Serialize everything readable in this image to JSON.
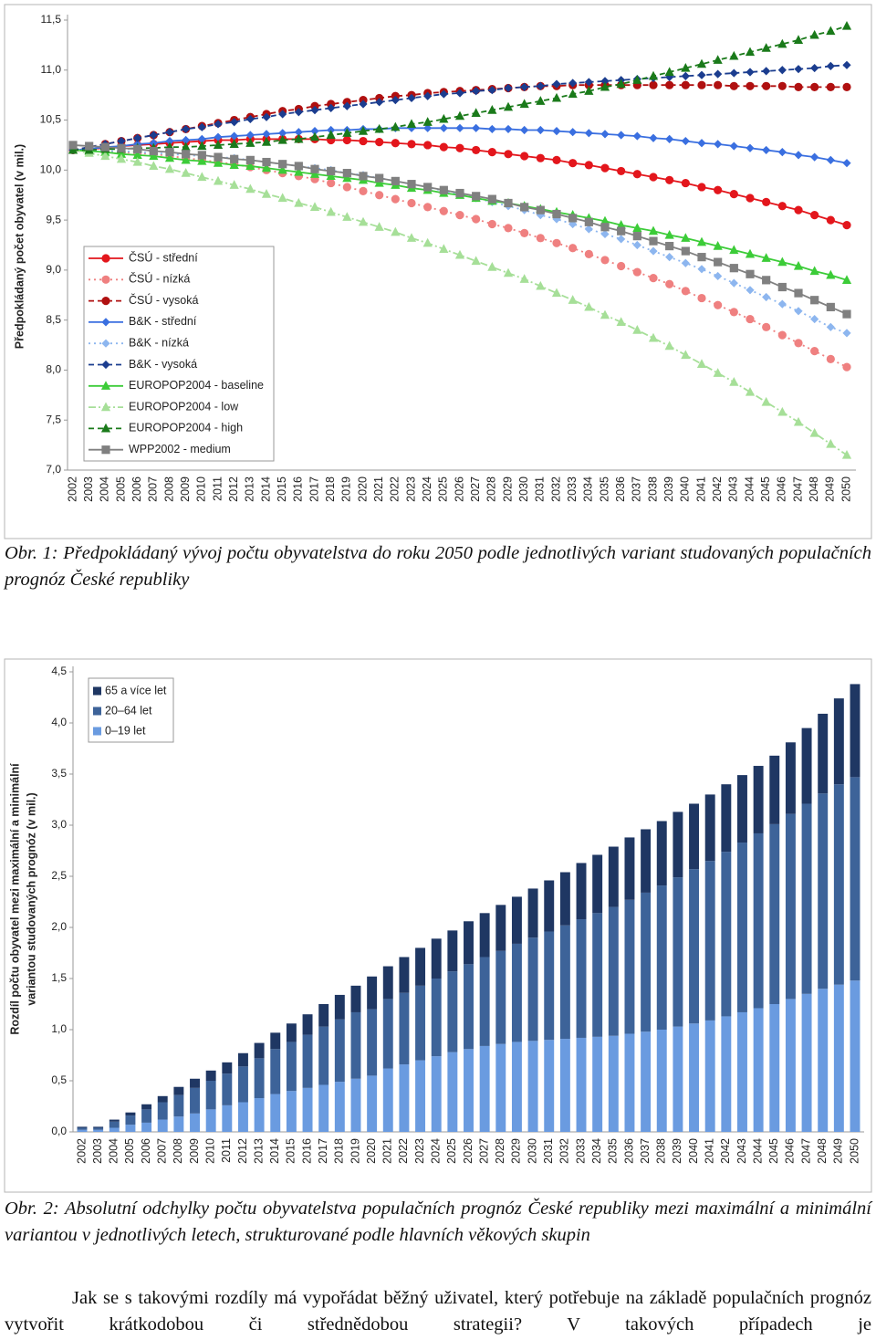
{
  "chart_data": [
    {
      "type": "line",
      "ylabel": "Předpokládaný počet obyvatel (v mil.)",
      "categories": [
        "2002",
        "2003",
        "2004",
        "2005",
        "2006",
        "2007",
        "2008",
        "2009",
        "2010",
        "2011",
        "2012",
        "2013",
        "2014",
        "2015",
        "2016",
        "2017",
        "2018",
        "2019",
        "2020",
        "2021",
        "2022",
        "2023",
        "2024",
        "2025",
        "2026",
        "2027",
        "2028",
        "2029",
        "2030",
        "2031",
        "2032",
        "2033",
        "2034",
        "2035",
        "2036",
        "2037",
        "2038",
        "2039",
        "2040",
        "2041",
        "2042",
        "2043",
        "2044",
        "2045",
        "2046",
        "2047",
        "2048",
        "2049",
        "2050"
      ],
      "ylim": [
        7.0,
        11.5
      ],
      "yticks": [
        {
          "value": 7.0,
          "label": "7,0"
        },
        {
          "value": 7.5,
          "label": "7,5"
        },
        {
          "value": 8.0,
          "label": "8,0"
        },
        {
          "value": 8.5,
          "label": "8,5"
        },
        {
          "value": 9.0,
          "label": "9,0"
        },
        {
          "value": 9.5,
          "label": "9,5"
        },
        {
          "value": 10.0,
          "label": "10,0"
        },
        {
          "value": 10.5,
          "label": "10,5"
        },
        {
          "value": 11.0,
          "label": "11,0"
        },
        {
          "value": 11.5,
          "label": "11,5"
        }
      ],
      "grid": false,
      "legend": "lower-left",
      "series": [
        {
          "name": "ČSÚ - střední",
          "color": "#e3161c",
          "marker": "circle",
          "linestyle": "solid",
          "values": [
            10.2,
            10.21,
            10.22,
            10.24,
            10.25,
            10.26,
            10.27,
            10.28,
            10.29,
            10.3,
            10.3,
            10.31,
            10.31,
            10.31,
            10.31,
            10.31,
            10.3,
            10.3,
            10.29,
            10.28,
            10.27,
            10.26,
            10.25,
            10.23,
            10.22,
            10.2,
            10.18,
            10.16,
            10.14,
            10.12,
            10.1,
            10.07,
            10.05,
            10.02,
            9.99,
            9.96,
            9.93,
            9.9,
            9.87,
            9.83,
            9.8,
            9.76,
            9.72,
            9.68,
            9.64,
            9.6,
            9.55,
            9.5,
            9.45
          ]
        },
        {
          "name": "ČSÚ - nízká",
          "color": "#ef8080",
          "marker": "circle",
          "linestyle": "dotted",
          "values": [
            10.2,
            10.2,
            10.19,
            10.18,
            10.17,
            10.16,
            10.14,
            10.12,
            10.1,
            10.08,
            10.06,
            10.03,
            10.0,
            9.97,
            9.94,
            9.91,
            9.87,
            9.83,
            9.79,
            9.75,
            9.71,
            9.67,
            9.63,
            9.59,
            9.55,
            9.51,
            9.46,
            9.42,
            9.37,
            9.32,
            9.27,
            9.22,
            9.16,
            9.1,
            9.04,
            8.98,
            8.92,
            8.86,
            8.79,
            8.72,
            8.65,
            8.58,
            8.51,
            8.43,
            8.35,
            8.27,
            8.19,
            8.11,
            8.03
          ]
        },
        {
          "name": "ČSÚ - vysoká",
          "color": "#b01010",
          "marker": "circle",
          "linestyle": "dashed",
          "values": [
            10.2,
            10.23,
            10.26,
            10.29,
            10.32,
            10.35,
            10.38,
            10.41,
            10.44,
            10.47,
            10.5,
            10.53,
            10.56,
            10.59,
            10.61,
            10.64,
            10.66,
            10.68,
            10.7,
            10.72,
            10.74,
            10.75,
            10.77,
            10.78,
            10.79,
            10.8,
            10.81,
            10.82,
            10.83,
            10.84,
            10.84,
            10.85,
            10.85,
            10.85,
            10.85,
            10.85,
            10.85,
            10.85,
            10.85,
            10.85,
            10.85,
            10.84,
            10.84,
            10.84,
            10.84,
            10.83,
            10.83,
            10.83,
            10.83
          ]
        },
        {
          "name": "B&K - střední",
          "color": "#3a6fe0",
          "marker": "diamond",
          "linestyle": "solid",
          "values": [
            10.2,
            10.21,
            10.23,
            10.24,
            10.26,
            10.27,
            10.29,
            10.3,
            10.31,
            10.33,
            10.34,
            10.35,
            10.36,
            10.37,
            10.38,
            10.39,
            10.4,
            10.4,
            10.41,
            10.41,
            10.42,
            10.42,
            10.42,
            10.42,
            10.42,
            10.42,
            10.41,
            10.41,
            10.4,
            10.4,
            10.39,
            10.38,
            10.37,
            10.36,
            10.35,
            10.34,
            10.32,
            10.31,
            10.29,
            10.27,
            10.26,
            10.24,
            10.22,
            10.2,
            10.18,
            10.15,
            10.13,
            10.1,
            10.07
          ]
        },
        {
          "name": "B&K - nízká",
          "color": "#8db6ef",
          "marker": "diamond",
          "linestyle": "dotted",
          "values": [
            10.2,
            10.2,
            10.19,
            10.19,
            10.18,
            10.17,
            10.16,
            10.15,
            10.14,
            10.13,
            10.12,
            10.1,
            10.08,
            10.06,
            10.04,
            10.02,
            10.0,
            9.97,
            9.95,
            9.92,
            9.89,
            9.86,
            9.83,
            9.79,
            9.76,
            9.72,
            9.68,
            9.64,
            9.6,
            9.55,
            9.51,
            9.46,
            9.41,
            9.36,
            9.31,
            9.25,
            9.19,
            9.13,
            9.07,
            9.01,
            8.94,
            8.87,
            8.8,
            8.73,
            8.66,
            8.59,
            8.51,
            8.43,
            8.37
          ]
        },
        {
          "name": "B&K - vysoká",
          "color": "#1b3d8f",
          "marker": "diamond",
          "linestyle": "dashed",
          "values": [
            10.2,
            10.23,
            10.26,
            10.29,
            10.32,
            10.35,
            10.38,
            10.41,
            10.43,
            10.46,
            10.48,
            10.51,
            10.53,
            10.56,
            10.58,
            10.6,
            10.62,
            10.64,
            10.66,
            10.68,
            10.7,
            10.72,
            10.74,
            10.76,
            10.77,
            10.79,
            10.8,
            10.82,
            10.83,
            10.84,
            10.86,
            10.87,
            10.88,
            10.89,
            10.9,
            10.91,
            10.92,
            10.93,
            10.94,
            10.95,
            10.96,
            10.97,
            10.98,
            10.99,
            11.0,
            11.01,
            11.02,
            11.04,
            11.05
          ]
        },
        {
          "name": "EUROPOP2004 - baseline",
          "color": "#3ccc38",
          "marker": "triangle",
          "linestyle": "solid",
          "values": [
            10.2,
            10.19,
            10.18,
            10.16,
            10.15,
            10.14,
            10.12,
            10.1,
            10.09,
            10.07,
            10.05,
            10.04,
            10.02,
            10.0,
            9.98,
            9.96,
            9.94,
            9.92,
            9.9,
            9.87,
            9.85,
            9.82,
            9.8,
            9.77,
            9.75,
            9.72,
            9.69,
            9.67,
            9.64,
            9.61,
            9.58,
            9.55,
            9.52,
            9.49,
            9.45,
            9.42,
            9.39,
            9.35,
            9.32,
            9.28,
            9.24,
            9.2,
            9.16,
            9.12,
            9.08,
            9.04,
            8.99,
            8.95,
            8.9
          ]
        },
        {
          "name": "EUROPOP2004 - low",
          "color": "#a6df98",
          "marker": "triangle",
          "linestyle": "dashdot",
          "values": [
            10.2,
            10.17,
            10.14,
            10.11,
            10.08,
            10.04,
            10.01,
            9.97,
            9.93,
            9.89,
            9.85,
            9.81,
            9.76,
            9.72,
            9.67,
            9.63,
            9.58,
            9.53,
            9.48,
            9.43,
            9.38,
            9.32,
            9.27,
            9.21,
            9.15,
            9.09,
            9.03,
            8.97,
            8.91,
            8.84,
            8.77,
            8.7,
            8.63,
            8.55,
            8.48,
            8.4,
            8.32,
            8.24,
            8.15,
            8.06,
            7.97,
            7.88,
            7.78,
            7.68,
            7.58,
            7.48,
            7.37,
            7.26,
            7.15
          ]
        },
        {
          "name": "EUROPOP2004 - high",
          "color": "#1a7a1a",
          "marker": "triangle",
          "linestyle": "dashed",
          "values": [
            10.2,
            10.2,
            10.21,
            10.21,
            10.22,
            10.22,
            10.23,
            10.23,
            10.24,
            10.25,
            10.26,
            10.27,
            10.28,
            10.3,
            10.31,
            10.33,
            10.35,
            10.37,
            10.39,
            10.41,
            10.43,
            10.46,
            10.48,
            10.51,
            10.54,
            10.57,
            10.6,
            10.63,
            10.66,
            10.69,
            10.72,
            10.76,
            10.79,
            10.83,
            10.86,
            10.9,
            10.94,
            10.98,
            11.02,
            11.06,
            11.1,
            11.14,
            11.18,
            11.22,
            11.26,
            11.3,
            11.35,
            11.39,
            11.44
          ]
        },
        {
          "name": "WPP2002 - medium",
          "color": "#808080",
          "marker": "square",
          "linestyle": "solid",
          "values": [
            10.25,
            10.24,
            10.23,
            10.22,
            10.21,
            10.19,
            10.18,
            10.16,
            10.15,
            10.13,
            10.11,
            10.1,
            10.08,
            10.06,
            10.04,
            10.01,
            9.99,
            9.97,
            9.94,
            9.92,
            9.89,
            9.86,
            9.83,
            9.8,
            9.77,
            9.74,
            9.71,
            9.67,
            9.63,
            9.6,
            9.56,
            9.52,
            9.48,
            9.43,
            9.39,
            9.34,
            9.29,
            9.24,
            9.19,
            9.13,
            9.08,
            9.02,
            8.96,
            8.9,
            8.83,
            8.77,
            8.7,
            8.63,
            8.56
          ]
        }
      ]
    },
    {
      "type": "bar",
      "stacked": true,
      "ylabel": [
        "Rozdíl počtu obyvatel mezi maximální a minimální",
        "variantou studovaných prognóz (v mil.)"
      ],
      "categories": [
        "2002",
        "2003",
        "2004",
        "2005",
        "2006",
        "2007",
        "2008",
        "2009",
        "2010",
        "2011",
        "2012",
        "2013",
        "2014",
        "2015",
        "2016",
        "2017",
        "2018",
        "2019",
        "2020",
        "2021",
        "2022",
        "2023",
        "2024",
        "2025",
        "2026",
        "2027",
        "2028",
        "2029",
        "2030",
        "2031",
        "2032",
        "2033",
        "2034",
        "2035",
        "2036",
        "2037",
        "2038",
        "2039",
        "2040",
        "2041",
        "2042",
        "2043",
        "2044",
        "2045",
        "2046",
        "2047",
        "2048",
        "2049",
        "2050"
      ],
      "ylim": [
        0.0,
        4.5
      ],
      "yticks": [
        {
          "value": 0.0,
          "label": "0,0"
        },
        {
          "value": 0.5,
          "label": "0,5"
        },
        {
          "value": 1.0,
          "label": "1,0"
        },
        {
          "value": 1.5,
          "label": "1,5"
        },
        {
          "value": 2.0,
          "label": "2,0"
        },
        {
          "value": 2.5,
          "label": "2,5"
        },
        {
          "value": 3.0,
          "label": "3,0"
        },
        {
          "value": 3.5,
          "label": "3,5"
        },
        {
          "value": 4.0,
          "label": "4,0"
        },
        {
          "value": 4.5,
          "label": "4,5"
        }
      ],
      "grid": false,
      "legend": "upper-left",
      "series": [
        {
          "name": "0–19 let",
          "color": "#6a9be0",
          "values": [
            0.02,
            0.02,
            0.04,
            0.07,
            0.09,
            0.12,
            0.15,
            0.18,
            0.22,
            0.26,
            0.29,
            0.33,
            0.37,
            0.4,
            0.43,
            0.46,
            0.49,
            0.52,
            0.55,
            0.62,
            0.66,
            0.7,
            0.74,
            0.78,
            0.81,
            0.84,
            0.86,
            0.88,
            0.89,
            0.9,
            0.91,
            0.92,
            0.93,
            0.94,
            0.96,
            0.98,
            1.0,
            1.03,
            1.06,
            1.09,
            1.13,
            1.17,
            1.21,
            1.25,
            1.3,
            1.35,
            1.4,
            1.44,
            1.48
          ]
        },
        {
          "name": "20–64 let",
          "color": "#3d6399",
          "values": [
            0.02,
            0.02,
            0.06,
            0.09,
            0.13,
            0.17,
            0.21,
            0.25,
            0.28,
            0.31,
            0.35,
            0.39,
            0.44,
            0.48,
            0.52,
            0.57,
            0.61,
            0.65,
            0.65,
            0.68,
            0.7,
            0.73,
            0.76,
            0.79,
            0.83,
            0.87,
            0.91,
            0.96,
            1.01,
            1.06,
            1.11,
            1.16,
            1.21,
            1.26,
            1.31,
            1.36,
            1.41,
            1.46,
            1.51,
            1.56,
            1.61,
            1.66,
            1.71,
            1.76,
            1.81,
            1.86,
            1.91,
            1.96,
            1.99
          ]
        },
        {
          "name": "65 a více let",
          "color": "#1f3763",
          "values": [
            0.01,
            0.01,
            0.02,
            0.03,
            0.05,
            0.06,
            0.08,
            0.09,
            0.1,
            0.11,
            0.13,
            0.15,
            0.16,
            0.18,
            0.2,
            0.22,
            0.24,
            0.26,
            0.32,
            0.32,
            0.35,
            0.37,
            0.39,
            0.4,
            0.42,
            0.43,
            0.45,
            0.46,
            0.48,
            0.5,
            0.52,
            0.55,
            0.57,
            0.59,
            0.61,
            0.62,
            0.63,
            0.64,
            0.64,
            0.65,
            0.66,
            0.66,
            0.66,
            0.67,
            0.7,
            0.74,
            0.78,
            0.84,
            0.91
          ]
        }
      ]
    }
  ],
  "captions": [
    "Obr. 1: Předpokládaný vývoj počtu obyvatelstva do roku 2050 podle jednotlivých variant studovaných populačních prognóz České republiky",
    "Obr. 2: Absolutní odchylky počtu obyvatelstva populačních prognóz České republiky mezi maximální a minimální variantou v jednotlivých letech, strukturované podle hlavních věkových skupin"
  ],
  "paragraph": "Jak se s takovými rozdíly má vypořádat běžný uživatel, který potřebuje na základě populačních prognóz vytvořit krátkodobou či střednědobou strategii? V takových případech je"
}
